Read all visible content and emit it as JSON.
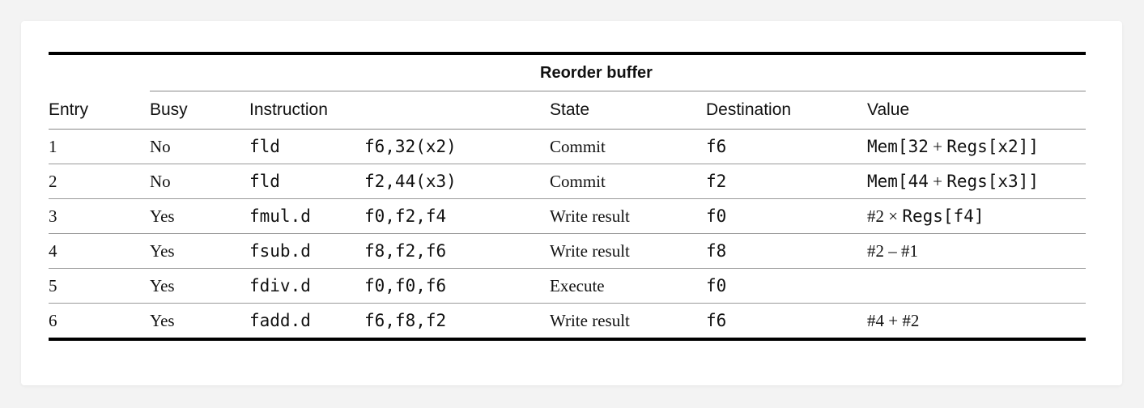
{
  "table": {
    "group_header": "Reorder buffer",
    "columns": {
      "entry": "Entry",
      "busy": "Busy",
      "instruction": "Instruction",
      "state": "State",
      "destination": "Destination",
      "value": "Value"
    },
    "rows": [
      {
        "entry": "1",
        "busy": "No",
        "op": "fld",
        "args": "f6,32(x2)",
        "state": "Commit",
        "destination": "f6",
        "value": [
          {
            "t": "Mem[32",
            "f": "m"
          },
          {
            "t": " + ",
            "f": "s"
          },
          {
            "t": "Regs[x2]]",
            "f": "m"
          }
        ]
      },
      {
        "entry": "2",
        "busy": "No",
        "op": "fld",
        "args": "f2,44(x3)",
        "state": "Commit",
        "destination": "f2",
        "value": [
          {
            "t": "Mem[44",
            "f": "m"
          },
          {
            "t": " + ",
            "f": "s"
          },
          {
            "t": "Regs[x3]]",
            "f": "m"
          }
        ]
      },
      {
        "entry": "3",
        "busy": "Yes",
        "op": "fmul.d",
        "args": "f0,f2,f4",
        "state": "Write result",
        "destination": "f0",
        "value": [
          {
            "t": "#2",
            "f": "s"
          },
          {
            "t": " × ",
            "f": "s"
          },
          {
            "t": "Regs[f4]",
            "f": "m"
          }
        ]
      },
      {
        "entry": "4",
        "busy": "Yes",
        "op": "fsub.d",
        "args": "f8,f2,f6",
        "state": "Write result",
        "destination": "f8",
        "value": [
          {
            "t": "#2 – #1",
            "f": "s"
          }
        ]
      },
      {
        "entry": "5",
        "busy": "Yes",
        "op": "fdiv.d",
        "args": "f0,f0,f6",
        "state": "Execute",
        "destination": "f0",
        "value": []
      },
      {
        "entry": "6",
        "busy": "Yes",
        "op": "fadd.d",
        "args": "f6,f8,f2",
        "state": "Write result",
        "destination": "f6",
        "value": [
          {
            "t": "#4 + #2",
            "f": "s"
          }
        ]
      }
    ]
  }
}
